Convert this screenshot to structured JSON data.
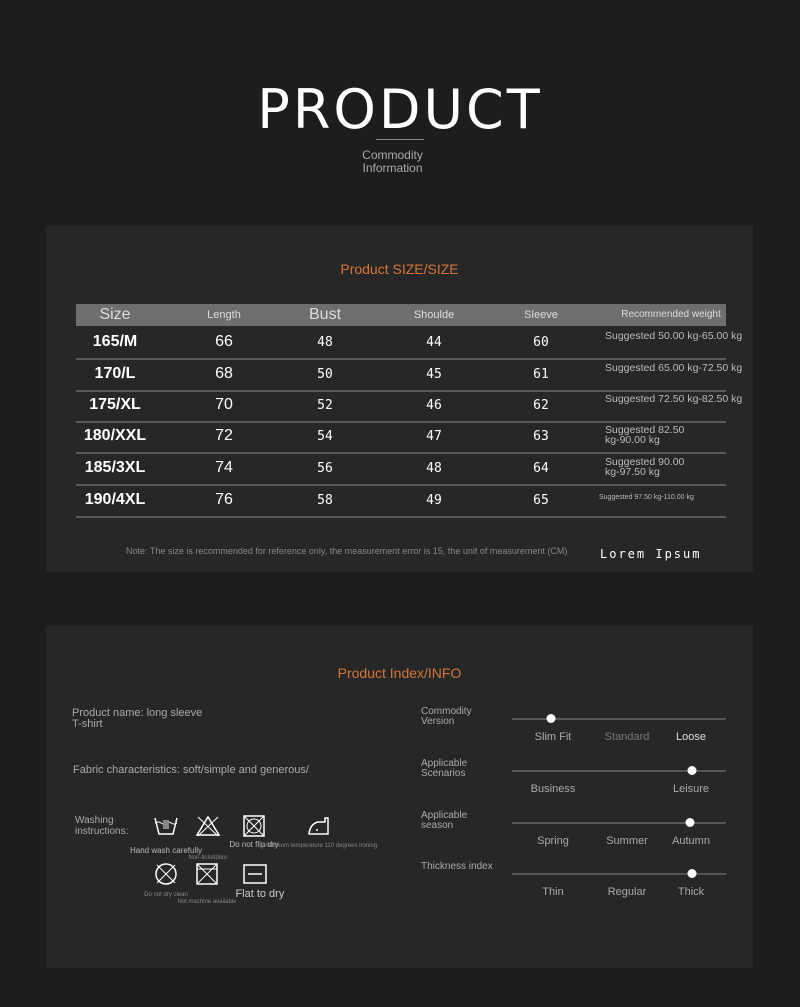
{
  "header": {
    "title": "PRODUCT",
    "subtitle_line1": "Commodity",
    "subtitle_line2": "Information"
  },
  "size_panel": {
    "title": "Product SIZE/SIZE",
    "columns": [
      "Size",
      "Length",
      "Bust",
      "Shoulde",
      "Sleeve",
      "Recommended weight"
    ],
    "rows": [
      {
        "size": "165/M",
        "length": "66",
        "bust": "48",
        "shoulder": "44",
        "sleeve": "60",
        "weight": "Suggested 50.00 kg-65.00 kg"
      },
      {
        "size": "170/L",
        "length": "68",
        "bust": "50",
        "shoulder": "45",
        "sleeve": "61",
        "weight": "Suggested 65.00 kg-72.50 kg"
      },
      {
        "size": "175/XL",
        "length": "70",
        "bust": "52",
        "shoulder": "46",
        "sleeve": "62",
        "weight": "Suggested 72.50 kg-82.50 kg"
      },
      {
        "size": "180/XXL",
        "length": "72",
        "bust": "54",
        "shoulder": "47",
        "sleeve": "63",
        "weight": "Suggested 82.50 kg-90.00 kg"
      },
      {
        "size": "185/3XL",
        "length": "74",
        "bust": "56",
        "shoulder": "48",
        "sleeve": "64",
        "weight": "Suggested 90.00 kg-97.50 kg"
      },
      {
        "size": "190/4XL",
        "length": "76",
        "bust": "58",
        "shoulder": "49",
        "sleeve": "65",
        "weight": "Suggested 97.50 kg-110.00 kg"
      }
    ],
    "note": "Note: The size is recommended for reference only, the measurement error is 15, the unit of measurement (CM)",
    "lorem": "Lorem Ipsum"
  },
  "info_panel": {
    "title": "Product Index/INFO",
    "product_name": "Product name: long sleeve T-shirt",
    "fabric": "Fabric characteristics: soft/simple and generous/",
    "washing_label": "Washing instructions:",
    "wash_icons": [
      {
        "icon": "hand-wash-icon",
        "label": "Hand wash carefully"
      },
      {
        "icon": "no-bleach-icon",
        "label": "Non-ticketdoor"
      },
      {
        "icon": "do-not-tumble-dry-icon",
        "label": "Do not flip dry"
      },
      {
        "icon": "iron-icon",
        "label": "Maximum temperature 110 degrees ironing"
      },
      {
        "icon": "do-not-dry-clean-icon",
        "label": "Do not dry clean"
      },
      {
        "icon": "no-machine-wash-icon",
        "label": "Not machine available"
      },
      {
        "icon": "flat-dry-icon",
        "label": "Flat to dry"
      }
    ],
    "sliders": [
      {
        "label": "Commodity Version",
        "options": [
          "Slim Fit",
          "Standard",
          "Loose"
        ],
        "value": 0.18
      },
      {
        "label": "Applicable Scenarios",
        "options": [
          "Business",
          "",
          "Leisure"
        ],
        "value": 0.84
      },
      {
        "label": "Applicable season",
        "options": [
          "Spring",
          "Summer",
          "Autumn"
        ],
        "value": 0.83
      },
      {
        "label": "Thickness index",
        "options": [
          "Thin",
          "Regular",
          "Thick"
        ],
        "value": 0.84
      }
    ]
  }
}
